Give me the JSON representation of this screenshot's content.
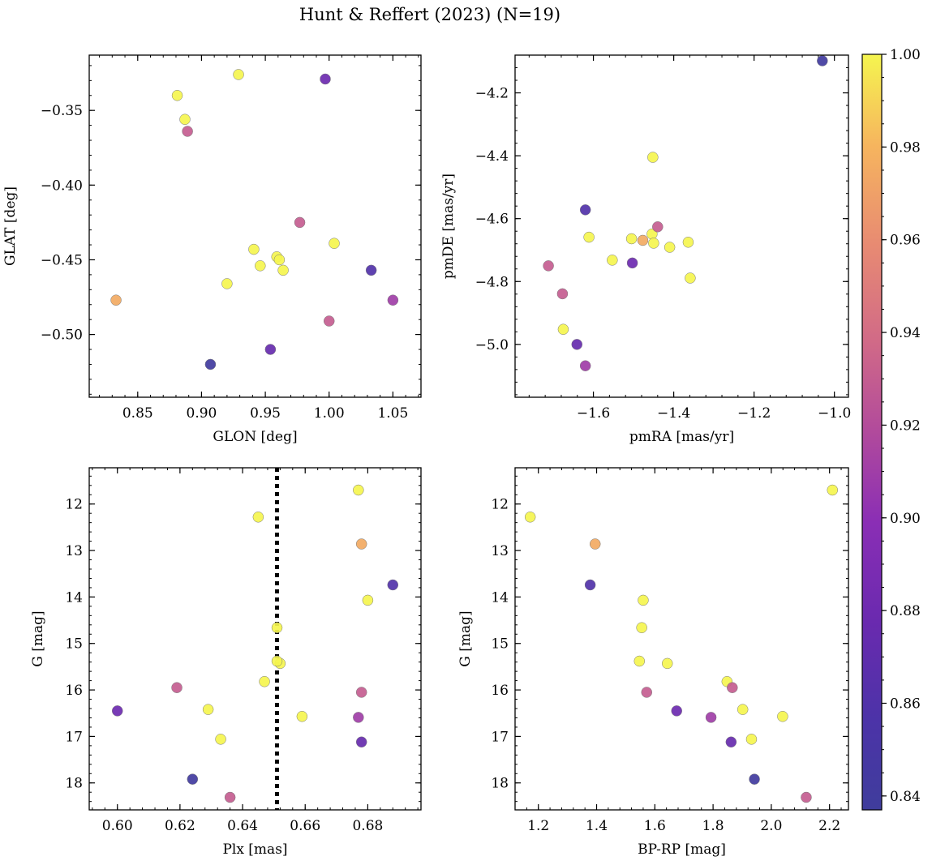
{
  "figure": {
    "title": "Hunt & Reffert (2023) (N=19)"
  },
  "colorbar": {
    "cmap": "plasma",
    "range": [
      0.837,
      1.0
    ],
    "ticks": [
      0.84,
      0.86,
      0.88,
      0.9,
      0.92,
      0.94,
      0.96,
      0.98,
      1.0
    ],
    "tick_labels": [
      "0.84",
      "0.86",
      "0.88",
      "0.90",
      "0.92",
      "0.94",
      "0.96",
      "0.98",
      "1.00"
    ]
  },
  "chart_data": [
    {
      "type": "scatter",
      "xlabel": "GLON [deg]",
      "ylabel": "GLAT [deg]",
      "xlim": [
        0.812,
        1.072
      ],
      "ylim": [
        -0.542,
        -0.313
      ],
      "xticks": [
        0.85,
        0.9,
        0.95,
        1.0,
        1.05
      ],
      "xtick_labels": [
        "0.85",
        "0.90",
        "0.95",
        "1.00",
        "1.05"
      ],
      "yticks": [
        -0.35,
        -0.4,
        -0.45,
        -0.5
      ],
      "ytick_labels": [
        "−0.35",
        "−0.40",
        "−0.45",
        "−0.50"
      ],
      "x": [
        0.881,
        0.887,
        0.929,
        0.941,
        0.946,
        0.959,
        0.961,
        0.964,
        1.004,
        0.92,
        0.833,
        0.889,
        0.977,
        1.0,
        1.05,
        0.997,
        1.033,
        0.954,
        0.907
      ],
      "y": [
        -0.34,
        -0.356,
        -0.326,
        -0.443,
        -0.454,
        -0.448,
        -0.45,
        -0.457,
        -0.439,
        -0.466,
        -0.477,
        -0.364,
        -0.425,
        -0.491,
        -0.477,
        -0.329,
        -0.457,
        -0.51,
        -0.52
      ],
      "c": [
        1.0,
        1.0,
        1.0,
        1.0,
        1.0,
        1.0,
        1.0,
        1.0,
        1.0,
        1.0,
        0.975,
        0.93,
        0.93,
        0.93,
        0.91,
        0.88,
        0.86,
        0.875,
        0.84
      ]
    },
    {
      "type": "scatter",
      "xlabel": "pmRA [mas/yr]",
      "ylabel": "pmDE [mas/yr]",
      "xlim": [
        -1.795,
        -0.965
      ],
      "ylim": [
        -5.168,
        -4.08
      ],
      "xticks": [
        -1.6,
        -1.4,
        -1.2,
        -1.0
      ],
      "xtick_labels": [
        "−1.6",
        "−1.4",
        "−1.2",
        "−1.0"
      ],
      "yticks": [
        -4.2,
        -4.4,
        -4.6,
        -4.8,
        -5.0
      ],
      "ytick_labels": [
        "−4.2",
        "−4.4",
        "−4.6",
        "−4.8",
        "−5.0"
      ],
      "x": [
        -1.452,
        -1.611,
        -1.505,
        -1.454,
        -1.45,
        -1.364,
        -1.41,
        -1.553,
        -1.359,
        -1.675,
        -1.477,
        -1.712,
        -1.677,
        -1.44,
        -1.62,
        -1.503,
        -1.641,
        -1.62,
        -1.03
      ],
      "y": [
        -4.405,
        -4.659,
        -4.664,
        -4.649,
        -4.678,
        -4.675,
        -4.691,
        -4.732,
        -4.789,
        -4.952,
        -4.669,
        -4.75,
        -4.839,
        -4.626,
        -5.068,
        -4.741,
        -5.0,
        -4.572,
        -4.098
      ],
      "c": [
        1.0,
        1.0,
        1.0,
        1.0,
        1.0,
        1.0,
        1.0,
        1.0,
        1.0,
        1.0,
        0.975,
        0.93,
        0.93,
        0.93,
        0.91,
        0.88,
        0.875,
        0.86,
        0.84
      ]
    },
    {
      "type": "scatter",
      "xlabel": "Plx [mas]",
      "ylabel": "G [mag]",
      "xlim": [
        0.591,
        0.697
      ],
      "ylim": [
        18.58,
        11.22
      ],
      "xticks": [
        0.6,
        0.62,
        0.64,
        0.66,
        0.68
      ],
      "xtick_labels": [
        "0.60",
        "0.62",
        "0.64",
        "0.66",
        "0.68"
      ],
      "yticks": [
        12,
        13,
        14,
        15,
        16,
        17,
        18
      ],
      "ytick_labels": [
        "12",
        "13",
        "14",
        "15",
        "16",
        "17",
        "18"
      ],
      "x": [
        0.677,
        0.645,
        0.68,
        0.651,
        0.652,
        0.647,
        0.629,
        0.659,
        0.633,
        0.651,
        0.678,
        0.619,
        0.678,
        0.636,
        0.677,
        0.6,
        0.678,
        0.688,
        0.624
      ],
      "y": [
        11.7,
        12.28,
        14.07,
        14.66,
        15.43,
        15.82,
        16.42,
        16.57,
        17.06,
        15.38,
        12.86,
        15.95,
        16.05,
        18.31,
        16.59,
        16.45,
        17.12,
        13.74,
        17.92
      ],
      "c": [
        1.0,
        1.0,
        1.0,
        1.0,
        1.0,
        1.0,
        1.0,
        1.0,
        1.0,
        1.0,
        0.975,
        0.93,
        0.93,
        0.93,
        0.91,
        0.88,
        0.875,
        0.86,
        0.84
      ],
      "vline": {
        "x": 0.651,
        "style": "dotted"
      }
    },
    {
      "type": "scatter",
      "xlabel": "BP-RP [mag]",
      "ylabel": "G [mag]",
      "xlim": [
        1.12,
        2.265
      ],
      "ylim": [
        18.58,
        11.22
      ],
      "xticks": [
        1.2,
        1.4,
        1.6,
        1.8,
        2.0,
        2.2
      ],
      "xtick_labels": [
        "1.2",
        "1.4",
        "1.6",
        "1.8",
        "2.0",
        "2.2"
      ],
      "yticks": [
        12,
        13,
        14,
        15,
        16,
        17,
        18
      ],
      "ytick_labels": [
        "12",
        "13",
        "14",
        "15",
        "16",
        "17",
        "18"
      ],
      "x": [
        2.21,
        1.172,
        1.56,
        1.555,
        1.547,
        1.643,
        1.848,
        1.902,
        2.039,
        1.932,
        1.395,
        1.866,
        1.572,
        2.12,
        1.793,
        1.675,
        1.862,
        1.378,
        1.942
      ],
      "y": [
        11.7,
        12.28,
        14.07,
        14.66,
        15.38,
        15.43,
        15.82,
        16.42,
        16.57,
        17.06,
        12.86,
        15.95,
        16.05,
        18.31,
        16.59,
        16.45,
        17.12,
        13.74,
        17.92
      ],
      "c": [
        1.0,
        1.0,
        1.0,
        1.0,
        1.0,
        1.0,
        1.0,
        1.0,
        1.0,
        1.0,
        0.975,
        0.93,
        0.93,
        0.93,
        0.91,
        0.88,
        0.875,
        0.86,
        0.84
      ]
    }
  ]
}
